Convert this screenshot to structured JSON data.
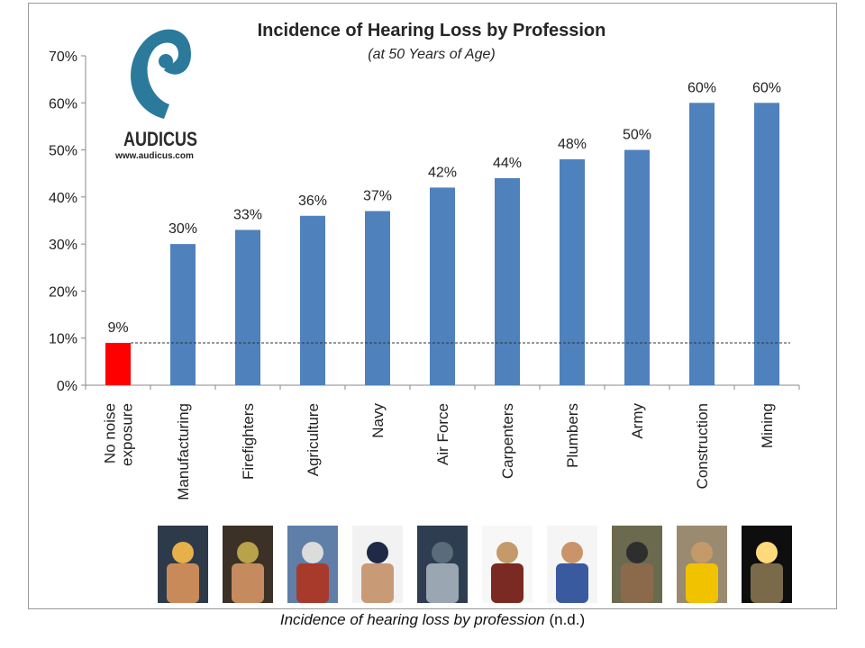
{
  "chart_data": {
    "type": "bar",
    "title": "Incidence of Hearing Loss by Profession",
    "subtitle": "(at 50 Years of Age)",
    "categories": [
      [
        "No noise",
        "exposure"
      ],
      [
        "Manufacturing"
      ],
      [
        "Firefighters"
      ],
      [
        "Agriculture"
      ],
      [
        "Navy"
      ],
      [
        "Air Force"
      ],
      [
        "Carpenters"
      ],
      [
        "Plumbers"
      ],
      [
        "Army"
      ],
      [
        "Construction"
      ],
      [
        "Mining"
      ]
    ],
    "values": [
      9,
      30,
      33,
      36,
      37,
      42,
      44,
      48,
      50,
      60,
      60
    ],
    "data_labels": [
      "9%",
      "30%",
      "33%",
      "36%",
      "37%",
      "42%",
      "44%",
      "48%",
      "50%",
      "60%",
      "60%"
    ],
    "highlight_index": 0,
    "ylim": [
      0,
      70
    ],
    "yticks": [
      0,
      10,
      20,
      30,
      40,
      50,
      60,
      70
    ],
    "ytick_labels": [
      "0%",
      "10%",
      "20%",
      "30%",
      "40%",
      "50%",
      "60%",
      "70%"
    ],
    "reference_line": 9,
    "grid": false,
    "colors": {
      "bar": "#4f81bd",
      "highlight": "#ff0000",
      "reference_line": "#333333",
      "axis": "#888888"
    }
  },
  "logo": {
    "brand_text": "AUDICUS",
    "url_text": "www.audicus.com",
    "colors": {
      "mark": "#2b7a9c",
      "text": "#2a2a2a"
    }
  },
  "photo_icons": [
    "welder-photo",
    "firefighter-photo",
    "farmer-photo",
    "navy-officer-photo",
    "air-force-pilot-photo",
    "carpenter-photo",
    "plumber-photo",
    "soldier-photo",
    "construction-worker-photo",
    "miner-photo"
  ],
  "caption": {
    "italic": "Incidence of hearing loss by profession",
    "plain": " (n.d.)"
  }
}
